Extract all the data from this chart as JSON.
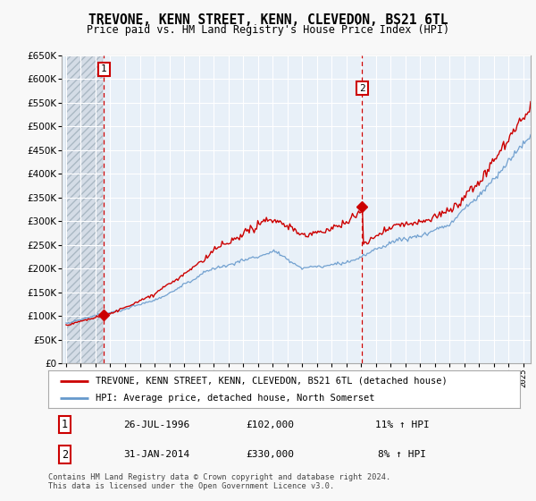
{
  "title": "TREVONE, KENN STREET, KENN, CLEVEDON, BS21 6TL",
  "subtitle": "Price paid vs. HM Land Registry's House Price Index (HPI)",
  "ylim": [
    0,
    650000
  ],
  "ytick_values": [
    0,
    50000,
    100000,
    150000,
    200000,
    250000,
    300000,
    350000,
    400000,
    450000,
    500000,
    550000,
    600000,
    650000
  ],
  "xlim_min": 1993.7,
  "xlim_max": 2025.5,
  "sale1_x": 1996.57,
  "sale1_y": 102000,
  "sale2_x": 2014.08,
  "sale2_y": 330000,
  "sale_color": "#cc0000",
  "hpi_color": "#6699cc",
  "legend_entries": [
    "TREVONE, KENN STREET, KENN, CLEVEDON, BS21 6TL (detached house)",
    "HPI: Average price, detached house, North Somerset"
  ],
  "table_rows": [
    [
      "1",
      "26-JUL-1996",
      "£102,000",
      "11% ↑ HPI"
    ],
    [
      "2",
      "31-JAN-2014",
      "£330,000",
      "8% ↑ HPI"
    ]
  ],
  "footnote": "Contains HM Land Registry data © Crown copyright and database right 2024.\nThis data is licensed under the Open Government Licence v3.0.",
  "plot_bg_color": "#e8f0f8",
  "fig_bg_color": "#f8f8f8",
  "grid_color": "#ffffff",
  "hatch_color": "#c8d0da"
}
